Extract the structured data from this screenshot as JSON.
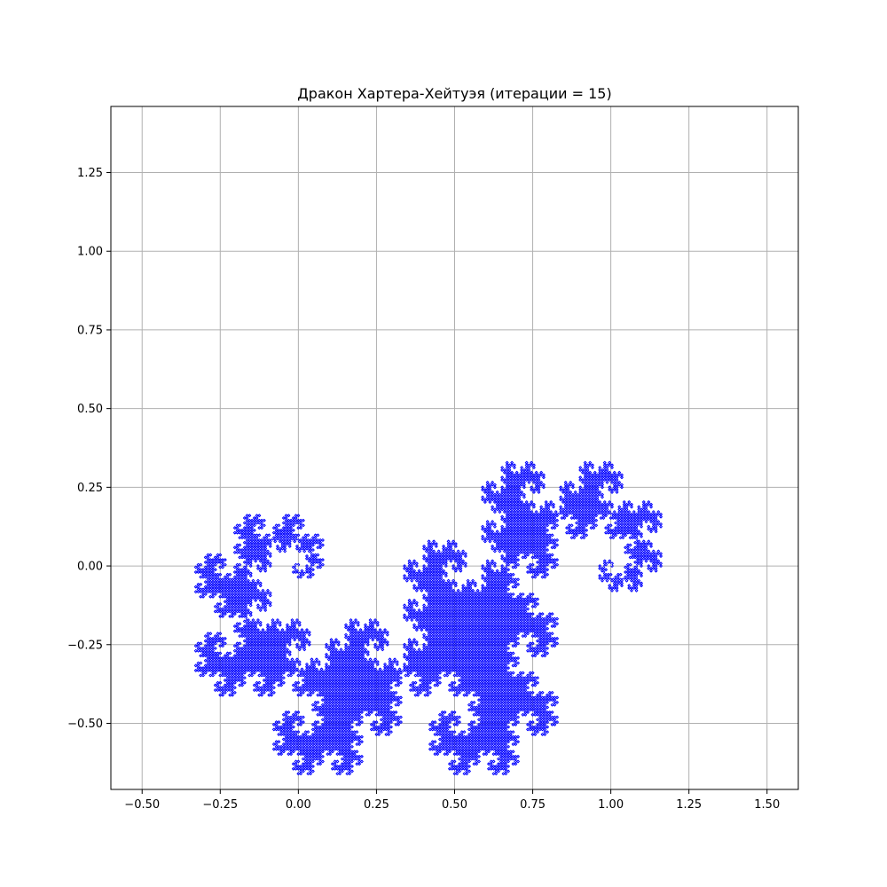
{
  "chart_data": {
    "type": "line",
    "title": "Дракон Хартера-Хейтуэя (итерации = 15)",
    "xlabel": "",
    "ylabel": "",
    "xlim": [
      -0.6,
      1.6
    ],
    "ylim": [
      -0.71,
      1.46
    ],
    "x_ticks": [
      -0.5,
      -0.25,
      0.0,
      0.25,
      0.5,
      0.75,
      1.0,
      1.25,
      1.5
    ],
    "x_tick_labels": [
      "−0.50",
      "−0.25",
      "0.00",
      "0.25",
      "0.50",
      "0.75",
      "1.00",
      "1.25",
      "1.50"
    ],
    "y_ticks": [
      -0.5,
      -0.25,
      0.0,
      0.25,
      0.5,
      0.75,
      1.0,
      1.25
    ],
    "y_tick_labels": [
      "−0.50",
      "−0.25",
      "0.00",
      "0.25",
      "0.50",
      "0.75",
      "1.00",
      "1.25"
    ],
    "grid": true,
    "legend": "none",
    "series": [
      {
        "curve": "heighway-dragon",
        "iterations": 15,
        "start": [
          0,
          0
        ],
        "end": [
          1,
          0
        ],
        "color": "#0000ff"
      }
    ],
    "colors": {
      "line": "#0000ff",
      "grid": "#b0b0b0",
      "axes": "#000000"
    }
  }
}
